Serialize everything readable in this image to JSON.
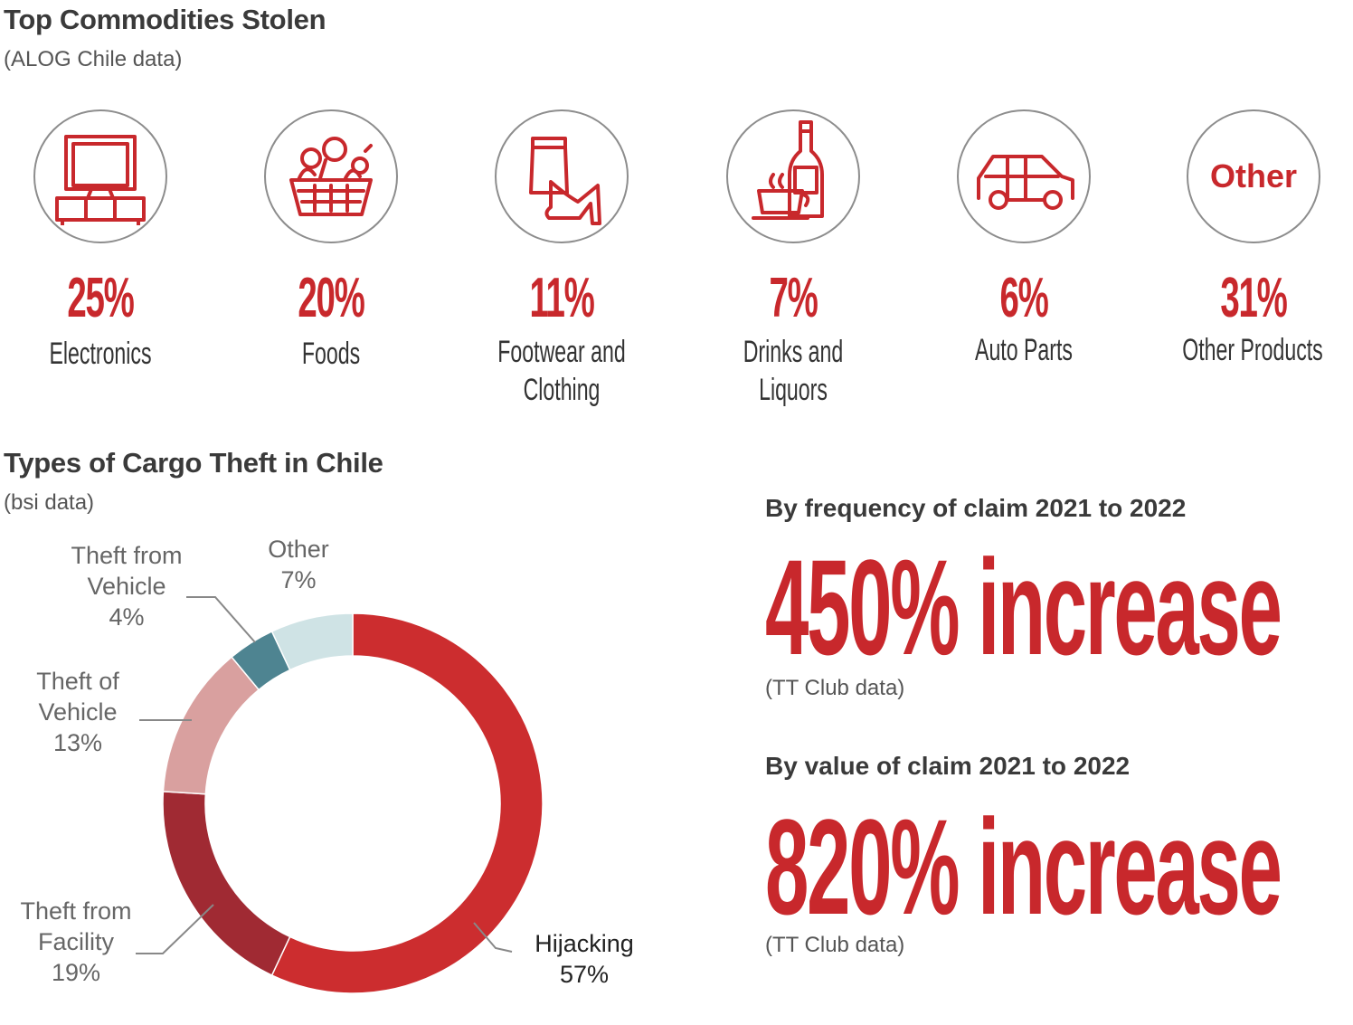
{
  "colors": {
    "accent_red": "#c8282c",
    "dark_red": "#a02a33",
    "pink": "#d9a09f",
    "teal": "#4e8491",
    "light_teal": "#cfe3e5",
    "circle_border": "#8d8d8d"
  },
  "commodities": {
    "title": "Top Commodities Stolen",
    "subtitle": "(ALOG Chile data)",
    "items": [
      {
        "icon": "tv-icon",
        "percent": "25%",
        "label": "Electronics"
      },
      {
        "icon": "food-basket-icon",
        "percent": "20%",
        "label": "Foods"
      },
      {
        "icon": "clothing-icon",
        "percent": "11%",
        "label": "Footwear and Clothing"
      },
      {
        "icon": "bottle-cup-icon",
        "percent": "7%",
        "label": "Drinks and Liquors"
      },
      {
        "icon": "car-icon",
        "percent": "6%",
        "label": "Auto Parts"
      },
      {
        "icon": "other-text-icon",
        "icon_text": "Other",
        "percent": "31%",
        "label": "Other Products"
      }
    ]
  },
  "cargo_theft": {
    "title": "Types of Cargo Theft in Chile",
    "subtitle": "(bsi data)"
  },
  "chart_data": {
    "type": "pie",
    "variant": "donut",
    "categories": [
      "Hijacking",
      "Theft from Facility",
      "Theft of Vehicle",
      "Theft from Vehicle",
      "Other"
    ],
    "values": [
      57,
      19,
      13,
      4,
      7
    ],
    "value_labels": [
      "57%",
      "19%",
      "13%",
      "4%",
      "7%"
    ],
    "label_lines": [
      [
        "Hijacking",
        "57%"
      ],
      [
        "Theft from",
        "Facility",
        "19%"
      ],
      [
        "Theft of",
        "Vehicle",
        "13%"
      ],
      [
        "Theft from",
        "Vehicle",
        "4%"
      ],
      [
        "Other",
        "7%"
      ]
    ],
    "colors": [
      "#cc2d2f",
      "#a02a33",
      "#d9a09f",
      "#4e8491",
      "#cfe3e5"
    ]
  },
  "stats": [
    {
      "heading": "By frequency of claim 2021 to 2022",
      "value": "450% increase",
      "source": "(TT Club data)"
    },
    {
      "heading": "By value of claim 2021 to 2022",
      "value": "820% increase",
      "source": "(TT Club data)"
    }
  ]
}
